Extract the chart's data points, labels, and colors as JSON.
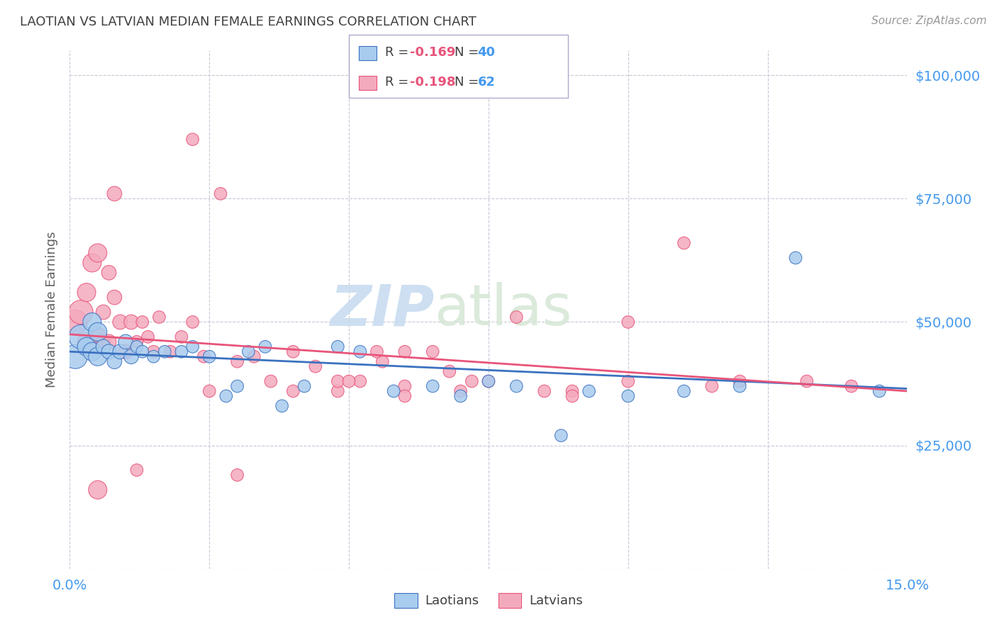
{
  "title": "LAOTIAN VS LATVIAN MEDIAN FEMALE EARNINGS CORRELATION CHART",
  "source": "Source: ZipAtlas.com",
  "ylabel": "Median Female Earnings",
  "watermark_zip": "ZIP",
  "watermark_atlas": "atlas",
  "xlim": [
    0.0,
    0.15
  ],
  "ylim": [
    0,
    105000
  ],
  "laotians_R": "-0.169",
  "laotians_N": "40",
  "latvians_R": "-0.198",
  "latvians_N": "62",
  "laotians_color": "#A8CCEE",
  "latvians_color": "#F4AABD",
  "line_laotians_color": "#3B72C0",
  "line_latvians_color": "#E8547A",
  "background_color": "#FFFFFF",
  "grid_color": "#C8C8D8",
  "title_color": "#404040",
  "axis_label_color": "#606060",
  "tick_label_color": "#4499EE",
  "source_color": "#999999",
  "legend_R_color": "#E8547A",
  "legend_N_color": "#4499EE",
  "lao_line_y0": 44000,
  "lao_line_y1": 36500,
  "lat_line_y0": 47500,
  "lat_line_y1": 36000,
  "laotians_x": [
    0.001,
    0.002,
    0.003,
    0.004,
    0.004,
    0.005,
    0.005,
    0.006,
    0.007,
    0.008,
    0.009,
    0.01,
    0.011,
    0.012,
    0.013,
    0.015,
    0.017,
    0.02,
    0.022,
    0.025,
    0.028,
    0.03,
    0.032,
    0.035,
    0.038,
    0.042,
    0.048,
    0.052,
    0.058,
    0.065,
    0.07,
    0.075,
    0.08,
    0.088,
    0.093,
    0.1,
    0.11,
    0.12,
    0.13,
    0.145
  ],
  "laotians_y": [
    43000,
    47000,
    45000,
    50000,
    44000,
    48000,
    43000,
    45000,
    44000,
    42000,
    44000,
    46000,
    43000,
    45000,
    44000,
    43000,
    44000,
    44000,
    45000,
    43000,
    35000,
    37000,
    44000,
    45000,
    33000,
    37000,
    45000,
    44000,
    36000,
    37000,
    35000,
    38000,
    37000,
    27000,
    36000,
    35000,
    36000,
    37000,
    63000,
    36000
  ],
  "latvians_x": [
    0.001,
    0.002,
    0.003,
    0.003,
    0.004,
    0.005,
    0.005,
    0.006,
    0.006,
    0.007,
    0.007,
    0.008,
    0.009,
    0.01,
    0.011,
    0.012,
    0.013,
    0.014,
    0.015,
    0.016,
    0.018,
    0.02,
    0.022,
    0.024,
    0.027,
    0.03,
    0.033,
    0.036,
    0.04,
    0.044,
    0.048,
    0.052,
    0.056,
    0.06,
    0.065,
    0.068,
    0.072,
    0.08,
    0.09,
    0.1,
    0.11,
    0.12,
    0.132,
    0.022,
    0.03,
    0.012,
    0.008,
    0.005,
    0.04,
    0.06,
    0.06,
    0.048,
    0.055,
    0.07,
    0.075,
    0.085,
    0.09,
    0.1,
    0.115,
    0.14,
    0.05,
    0.025
  ],
  "latvians_y": [
    50000,
    52000,
    46000,
    56000,
    62000,
    47000,
    64000,
    46000,
    52000,
    46000,
    60000,
    55000,
    50000,
    44000,
    50000,
    46000,
    50000,
    47000,
    44000,
    51000,
    44000,
    47000,
    50000,
    43000,
    76000,
    42000,
    43000,
    38000,
    44000,
    41000,
    36000,
    38000,
    42000,
    37000,
    44000,
    40000,
    38000,
    51000,
    36000,
    50000,
    66000,
    38000,
    38000,
    87000,
    19000,
    20000,
    76000,
    16000,
    36000,
    35000,
    44000,
    38000,
    44000,
    36000,
    38000,
    36000,
    35000,
    38000,
    37000,
    37000,
    38000,
    36000
  ]
}
